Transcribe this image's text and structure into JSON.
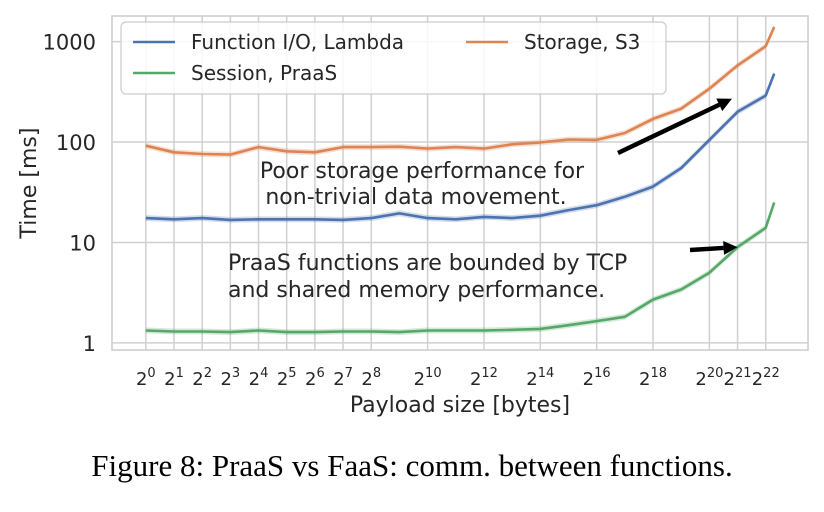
{
  "caption": "Figure 8: PraaS vs FaaS: comm. between functions.",
  "chart_data": {
    "type": "line",
    "xlabel": "Payload size [bytes]",
    "ylabel": "Time [ms]",
    "xscale": "log2",
    "yscale": "log10",
    "xlim": [
      -1.2,
      23.5
    ],
    "ylim": [
      0.85,
      1800
    ],
    "grid": true,
    "legend_position": "top",
    "xticks": [
      {
        "exp": 0,
        "base": "2",
        "sup": "0"
      },
      {
        "exp": 1,
        "base": "2",
        "sup": "1"
      },
      {
        "exp": 2,
        "base": "2",
        "sup": "2"
      },
      {
        "exp": 3,
        "base": "2",
        "sup": "3"
      },
      {
        "exp": 4,
        "base": "2",
        "sup": "4"
      },
      {
        "exp": 5,
        "base": "2",
        "sup": "5"
      },
      {
        "exp": 6,
        "base": "2",
        "sup": "6"
      },
      {
        "exp": 7,
        "base": "2",
        "sup": "7"
      },
      {
        "exp": 8,
        "base": "2",
        "sup": "8"
      },
      {
        "exp": 10,
        "base": "2",
        "sup": "10"
      },
      {
        "exp": 12,
        "base": "2",
        "sup": "12"
      },
      {
        "exp": 14,
        "base": "2",
        "sup": "14"
      },
      {
        "exp": 16,
        "base": "2",
        "sup": "16"
      },
      {
        "exp": 18,
        "base": "2",
        "sup": "18"
      },
      {
        "exp": 20,
        "base": "2",
        "sup": "20"
      },
      {
        "exp": 21,
        "base": "2",
        "sup": "21"
      },
      {
        "exp": 22,
        "base": "2",
        "sup": "22"
      }
    ],
    "yticks": [
      {
        "value": 1,
        "label": "1"
      },
      {
        "value": 10,
        "label": "10"
      },
      {
        "value": 100,
        "label": "100"
      },
      {
        "value": 1000,
        "label": "1000"
      }
    ],
    "x_exponents": [
      0,
      1,
      2,
      3,
      4,
      5,
      6,
      7,
      8,
      9,
      10,
      11,
      12,
      13,
      14,
      15,
      16,
      17,
      18,
      19,
      20,
      21,
      22,
      22.3
    ],
    "series": [
      {
        "name": "Function I/O, Lambda",
        "color": "#4c72b0",
        "values": [
          17.5,
          17,
          17.5,
          16.8,
          17,
          17,
          17,
          16.8,
          17.5,
          19.5,
          17.5,
          17,
          18,
          17.5,
          18.5,
          21,
          23.5,
          28.5,
          36,
          55,
          105,
          200,
          290,
          480
        ]
      },
      {
        "name": "Storage, S3",
        "color": "#dd8452",
        "values": [
          92,
          79,
          76,
          75,
          89,
          81,
          79,
          89,
          89,
          90,
          86,
          89,
          86,
          95,
          99,
          106,
          105,
          123,
          170,
          215,
          340,
          580,
          900,
          1400
        ]
      },
      {
        "name": "Session, PraaS",
        "color": "#55a868",
        "values": [
          1.33,
          1.3,
          1.3,
          1.28,
          1.33,
          1.28,
          1.28,
          1.3,
          1.3,
          1.28,
          1.33,
          1.33,
          1.33,
          1.35,
          1.38,
          1.5,
          1.65,
          1.82,
          2.7,
          3.4,
          5,
          9,
          14,
          25
        ]
      }
    ],
    "annotations": [
      {
        "lines": [
          "Poor storage performance for",
          "non-trivial data movement."
        ],
        "arrow_to": {
          "exp": 20.8,
          "value": 270
        }
      },
      {
        "lines": [
          "PraaS functions are bounded by TCP",
          "and shared memory performance."
        ],
        "arrow_to": {
          "exp": 21,
          "value": 9
        }
      }
    ]
  }
}
